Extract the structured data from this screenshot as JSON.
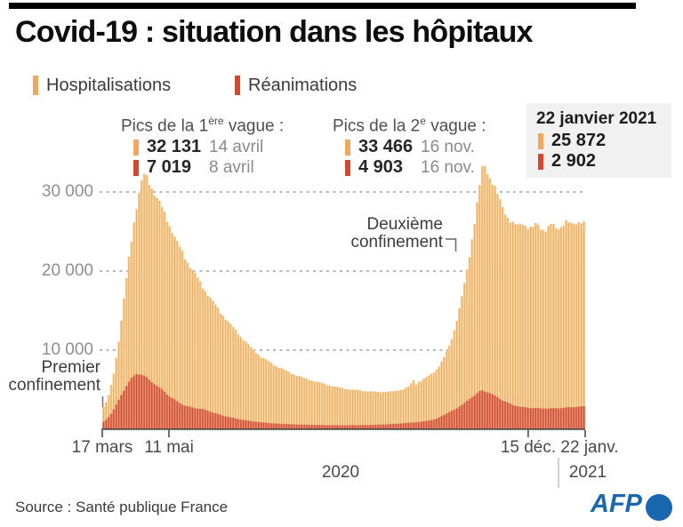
{
  "header": {
    "title": "Covid-19 : situation dans les hôpitaux"
  },
  "legend": {
    "items": [
      {
        "label": "Hospitalisations",
        "color": "#f0a85f"
      },
      {
        "label": "Réanimations",
        "color": "#d2492f"
      }
    ]
  },
  "peaks": {
    "wave1": {
      "title_prefix": "Pics de la 1",
      "title_sup": "ère",
      "title_suffix": " vague :",
      "rows": [
        {
          "series": "hospitalisations",
          "value": "32 131",
          "date": "14 avril"
        },
        {
          "series": "reanimations",
          "value": "7 019",
          "date": "8 avril"
        }
      ]
    },
    "wave2": {
      "title_prefix": "Pics de la 2",
      "title_sup": "e",
      "title_suffix": " vague :",
      "rows": [
        {
          "series": "hospitalisations",
          "value": "33 466",
          "date": "16 nov."
        },
        {
          "series": "reanimations",
          "value": "4 903",
          "date": "16 nov."
        }
      ]
    }
  },
  "current": {
    "date": "22 janvier 2021",
    "rows": [
      {
        "series": "hospitalisations",
        "value": "25 872"
      },
      {
        "series": "reanimations",
        "value": "2 902"
      }
    ]
  },
  "annotations": {
    "first_lockdown": [
      "Premier",
      "confinement"
    ],
    "second_lockdown": [
      "Deuxième",
      "confinement"
    ]
  },
  "footer": {
    "source": "Source : Santé publique France",
    "agency": "AFP",
    "year_left": "2020",
    "year_right": "2021"
  },
  "colors": {
    "hosp_light": "#f8d9a8",
    "hosp_dark": "#f0ad62",
    "rea_light": "#e98f70",
    "rea_dark": "#cb4b33",
    "grid": "#a0a0a0",
    "axis": "#3f3f3f",
    "afp_blue": "#1b67af"
  },
  "chart_data": {
    "type": "area",
    "title": "Covid-19 : situation dans les hôpitaux",
    "grid": true,
    "x_axis": {
      "ticks": [
        {
          "label": "17 mars",
          "frac": 0.0
        },
        {
          "label": "11 mai",
          "frac": 0.138
        },
        {
          "label": "15 déc.",
          "frac": 0.882
        },
        {
          "label": "22 janv.",
          "frac": 1.0
        }
      ]
    },
    "y_axis": {
      "ticks": [
        {
          "label": "10 000",
          "value": 10000
        },
        {
          "label": "20 000",
          "value": 20000
        },
        {
          "label": "30 000",
          "value": 30000
        }
      ],
      "range": [
        0,
        34000
      ]
    },
    "series": [
      {
        "name": "Hospitalisations",
        "peak_wave1": {
          "value": 32131,
          "date": "14 avril"
        },
        "peak_wave2": {
          "value": 33466,
          "date": "16 nov."
        },
        "last": {
          "value": 25872,
          "date": "22 janvier 2021"
        },
        "points": [
          [
            0,
            2600
          ],
          [
            0.008,
            3400
          ],
          [
            0.016,
            4800
          ],
          [
            0.025,
            7500
          ],
          [
            0.035,
            11500
          ],
          [
            0.045,
            16500
          ],
          [
            0.055,
            21500
          ],
          [
            0.065,
            26000
          ],
          [
            0.075,
            29500
          ],
          [
            0.082,
            31300
          ],
          [
            0.087,
            32131
          ],
          [
            0.093,
            31800
          ],
          [
            0.1,
            30900
          ],
          [
            0.11,
            29600
          ],
          [
            0.125,
            27800
          ],
          [
            0.138,
            26000
          ],
          [
            0.155,
            23600
          ],
          [
            0.175,
            21300
          ],
          [
            0.19,
            19800
          ],
          [
            0.21,
            17800
          ],
          [
            0.23,
            16000
          ],
          [
            0.25,
            14400
          ],
          [
            0.27,
            12900
          ],
          [
            0.29,
            11500
          ],
          [
            0.31,
            10200
          ],
          [
            0.33,
            9100
          ],
          [
            0.36,
            8000
          ],
          [
            0.39,
            7100
          ],
          [
            0.42,
            6400
          ],
          [
            0.45,
            5900
          ],
          [
            0.48,
            5400
          ],
          [
            0.51,
            5050
          ],
          [
            0.54,
            4850
          ],
          [
            0.57,
            4700
          ],
          [
            0.6,
            4750
          ],
          [
            0.62,
            5000
          ],
          [
            0.635,
            5400
          ],
          [
            0.645,
            6200
          ],
          [
            0.65,
            5700
          ],
          [
            0.655,
            6000
          ],
          [
            0.665,
            6300
          ],
          [
            0.675,
            6700
          ],
          [
            0.69,
            7400
          ],
          [
            0.7,
            8200
          ],
          [
            0.71,
            9300
          ],
          [
            0.72,
            10800
          ],
          [
            0.73,
            12800
          ],
          [
            0.74,
            15300
          ],
          [
            0.75,
            18300
          ],
          [
            0.76,
            21800
          ],
          [
            0.77,
            25800
          ],
          [
            0.78,
            30000
          ],
          [
            0.788,
            33466
          ],
          [
            0.795,
            33000
          ],
          [
            0.8,
            32200
          ],
          [
            0.81,
            31000
          ],
          [
            0.82,
            29300
          ],
          [
            0.83,
            27900
          ],
          [
            0.84,
            26800
          ],
          [
            0.85,
            26000
          ],
          [
            0.86,
            25600
          ],
          [
            0.87,
            26200
          ],
          [
            0.88,
            25600
          ],
          [
            0.89,
            25300
          ],
          [
            0.9,
            26000
          ],
          [
            0.91,
            25400
          ],
          [
            0.92,
            25200
          ],
          [
            0.93,
            25900
          ],
          [
            0.94,
            25400
          ],
          [
            0.95,
            25700
          ],
          [
            0.96,
            26200
          ],
          [
            0.97,
            25800
          ],
          [
            0.98,
            26100
          ],
          [
            0.99,
            26400
          ],
          [
            1,
            25872
          ]
        ]
      },
      {
        "name": "Réanimations",
        "peak_wave1": {
          "value": 7019,
          "date": "8 avril"
        },
        "peak_wave2": {
          "value": 4903,
          "date": "16 nov."
        },
        "last": {
          "value": 2902,
          "date": "22 janvier 2021"
        },
        "points": [
          [
            0,
            800
          ],
          [
            0.01,
            1300
          ],
          [
            0.02,
            2100
          ],
          [
            0.03,
            3200
          ],
          [
            0.04,
            4400
          ],
          [
            0.05,
            5500
          ],
          [
            0.06,
            6400
          ],
          [
            0.07,
            7019
          ],
          [
            0.08,
            6950
          ],
          [
            0.09,
            6600
          ],
          [
            0.1,
            6100
          ],
          [
            0.115,
            5400
          ],
          [
            0.13,
            4700
          ],
          [
            0.138,
            4200
          ],
          [
            0.155,
            3500
          ],
          [
            0.17,
            3000
          ],
          [
            0.19,
            2700
          ],
          [
            0.21,
            2500
          ],
          [
            0.23,
            2100
          ],
          [
            0.25,
            1700
          ],
          [
            0.28,
            1300
          ],
          [
            0.31,
            1000
          ],
          [
            0.35,
            750
          ],
          [
            0.4,
            600
          ],
          [
            0.45,
            530
          ],
          [
            0.5,
            500
          ],
          [
            0.55,
            530
          ],
          [
            0.6,
            650
          ],
          [
            0.63,
            780
          ],
          [
            0.66,
            950
          ],
          [
            0.69,
            1250
          ],
          [
            0.71,
            1900
          ],
          [
            0.73,
            2500
          ],
          [
            0.75,
            3300
          ],
          [
            0.77,
            4300
          ],
          [
            0.785,
            4903
          ],
          [
            0.8,
            4650
          ],
          [
            0.815,
            4150
          ],
          [
            0.83,
            3600
          ],
          [
            0.85,
            3050
          ],
          [
            0.87,
            2800
          ],
          [
            0.89,
            2680
          ],
          [
            0.92,
            2620
          ],
          [
            0.95,
            2680
          ],
          [
            0.97,
            2780
          ],
          [
            0.99,
            2870
          ],
          [
            1,
            2902
          ]
        ]
      }
    ]
  }
}
